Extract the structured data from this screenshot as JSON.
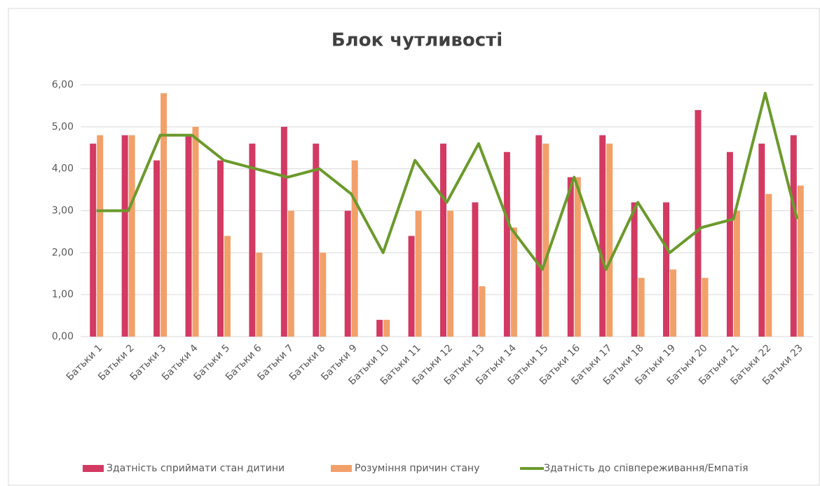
{
  "chart_data": {
    "type": "bar",
    "title": "Блок чутливості",
    "categories": [
      "Батьки 1",
      "Батьки 2",
      "Батьки 3",
      "Батьки 4",
      "Батьки 5",
      "Батьки 6",
      "Батьки 7",
      "Батьки 8",
      "Батьки 9",
      "Батьки 10",
      "Батьки 11",
      "Батьки 12",
      "Батьки 13",
      "Батьки 14",
      "Батьки 15",
      "Батьки 16",
      "Батьки 17",
      "Батьки 18",
      "Батьки 19",
      "Батьки 20",
      "Батьки 21",
      "Батьки 22",
      "Батьки 23"
    ],
    "series": [
      {
        "name": "Здатність сприймати стан дитини",
        "type": "bar",
        "color": "#d23a63",
        "values": [
          4.6,
          4.8,
          4.2,
          4.8,
          4.2,
          4.6,
          5.0,
          4.6,
          3.0,
          0.4,
          2.4,
          4.6,
          3.2,
          4.4,
          4.8,
          3.8,
          4.8,
          3.2,
          3.2,
          5.4,
          4.4,
          4.6,
          4.8
        ]
      },
      {
        "name": "Розуміння причин стану",
        "type": "bar",
        "color": "#f2a06a",
        "values": [
          4.8,
          4.8,
          5.8,
          5.0,
          2.4,
          2.0,
          3.0,
          2.0,
          4.2,
          0.4,
          3.0,
          3.0,
          1.2,
          2.6,
          4.6,
          3.8,
          4.6,
          1.4,
          1.6,
          1.4,
          3.0,
          3.4,
          3.6
        ]
      },
      {
        "name": "Здатність до співпереживання/Емпатія",
        "type": "line",
        "color": "#6b9a2c",
        "values": [
          3.0,
          3.0,
          4.8,
          4.8,
          4.2,
          4.0,
          3.8,
          4.0,
          3.4,
          2.0,
          4.2,
          3.2,
          4.6,
          2.6,
          1.6,
          3.8,
          1.6,
          3.2,
          2.0,
          2.6,
          2.8,
          5.8,
          2.8
        ]
      }
    ],
    "ylim": [
      0,
      6
    ],
    "yticks": [
      {
        "value": 0,
        "label": "0,00"
      },
      {
        "value": 1,
        "label": "1,00"
      },
      {
        "value": 2,
        "label": "2,00"
      },
      {
        "value": 3,
        "label": "3,00"
      },
      {
        "value": 4,
        "label": "4,00"
      },
      {
        "value": 5,
        "label": "5,00"
      },
      {
        "value": 6,
        "label": "6,00"
      }
    ],
    "grid": true,
    "legend": "bottom"
  }
}
